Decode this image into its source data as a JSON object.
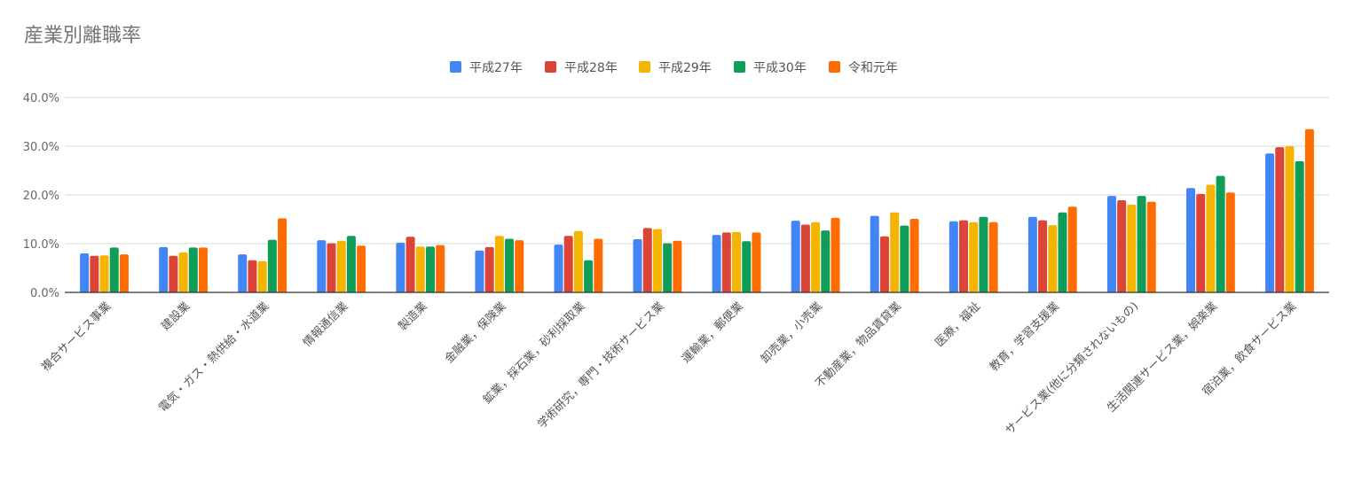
{
  "chart_data": {
    "type": "bar",
    "title": "産業別離職率",
    "xlabel": "",
    "ylabel": "",
    "ylim": [
      0,
      40
    ],
    "yticks": [
      "0.0%",
      "10.0%",
      "20.0%",
      "30.0%",
      "40.0%"
    ],
    "grid": true,
    "legend_position": "top",
    "categories": [
      "複合サービス事業",
      "建設業",
      "電気・ガス・熱供給・水道業",
      "情報通信業",
      "製造業",
      "金融業，保険業",
      "鉱業，採石業，砂利採取業",
      "学術研究，専門・技術サービス業",
      "運輸業，郵便業",
      "卸売業，小売業",
      "不動産業，物品賃貸業",
      "医療，福祉",
      "教育，学習支援業",
      "サービス業(他に分類されないもの)",
      "生活関連サービス業，娯楽業",
      "宿泊業，飲食サービス業"
    ],
    "series": [
      {
        "name": "平成27年",
        "color": "#4285f4",
        "values": [
          8.0,
          9.3,
          7.8,
          10.7,
          10.2,
          8.6,
          9.8,
          10.9,
          11.8,
          14.7,
          15.7,
          14.6,
          15.5,
          19.8,
          21.4,
          28.5
        ]
      },
      {
        "name": "平成28年",
        "color": "#db4437",
        "values": [
          7.5,
          7.5,
          6.6,
          10.1,
          11.4,
          9.3,
          11.6,
          13.2,
          12.3,
          13.9,
          11.5,
          14.8,
          14.8,
          18.9,
          20.2,
          29.8
        ]
      },
      {
        "name": "平成29年",
        "color": "#f4b400",
        "values": [
          7.6,
          8.2,
          6.4,
          10.6,
          9.4,
          11.6,
          12.6,
          13.0,
          12.4,
          14.4,
          16.4,
          14.4,
          13.8,
          18.0,
          22.1,
          30.0
        ]
      },
      {
        "name": "平成30年",
        "color": "#0f9d58",
        "values": [
          9.2,
          9.2,
          10.8,
          11.6,
          9.4,
          11.0,
          6.6,
          10.1,
          10.5,
          12.7,
          13.7,
          15.5,
          16.4,
          19.8,
          23.9,
          26.9
        ]
      },
      {
        "name": "令和元年",
        "color": "#ff6d00",
        "values": [
          7.8,
          9.2,
          15.2,
          9.6,
          9.7,
          10.7,
          11.0,
          10.6,
          12.3,
          15.3,
          15.1,
          14.4,
          17.6,
          18.6,
          20.5,
          33.5
        ]
      }
    ]
  }
}
